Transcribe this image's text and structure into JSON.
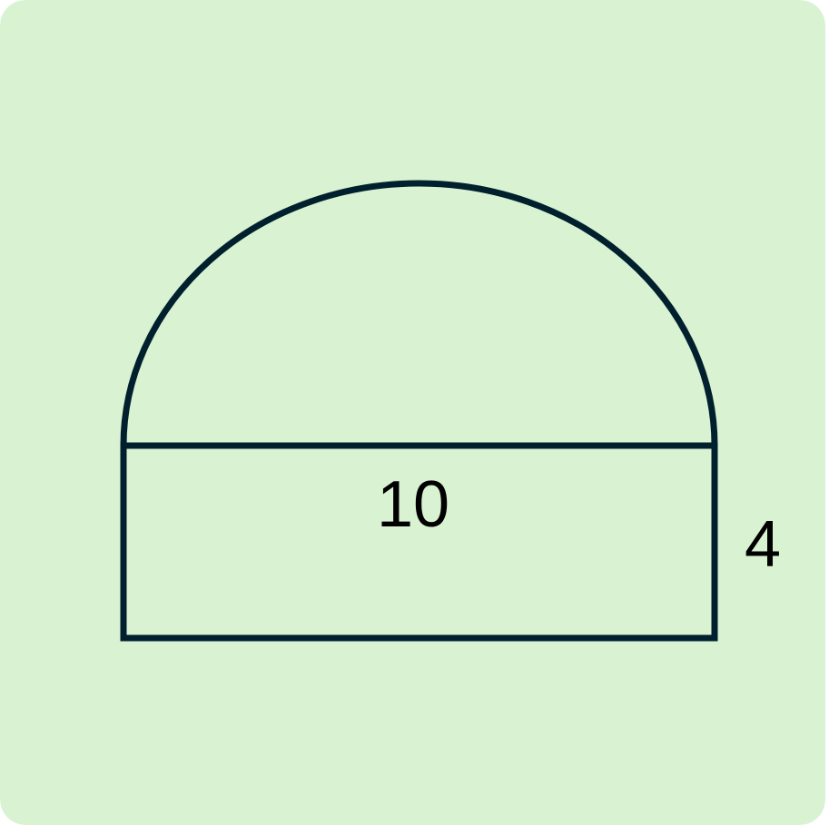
{
  "colors": {
    "background": "#d9f2d2",
    "stroke": "#01202e",
    "text": "#000000"
  },
  "labels": {
    "width": "10",
    "height": "4"
  }
}
